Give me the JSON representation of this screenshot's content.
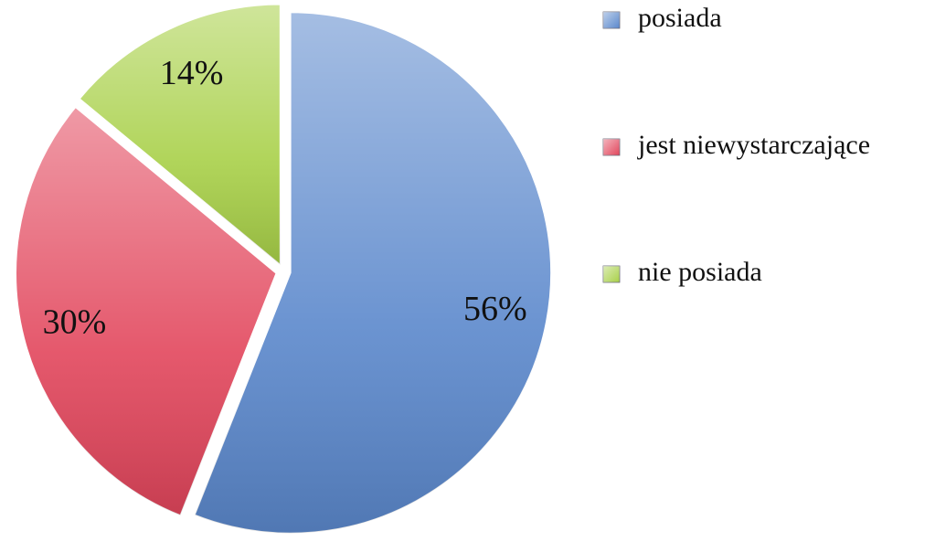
{
  "chart_data": {
    "type": "pie",
    "categories": [
      "posiada",
      "jest niewystarczające",
      "nie posiada"
    ],
    "values": [
      56,
      30,
      14
    ],
    "value_labels": [
      "56%",
      "30%",
      "14%"
    ],
    "colors": [
      "#5b88cc",
      "#e2465c",
      "#a8d048"
    ],
    "legend": "right"
  }
}
